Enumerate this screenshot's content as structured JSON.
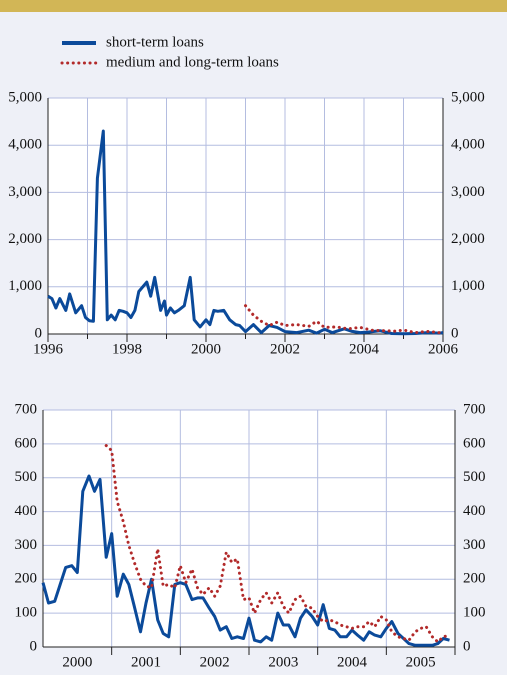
{
  "chart_data": [
    {
      "type": "line",
      "xlim": [
        1996,
        2006
      ],
      "xticks": [
        1996,
        1998,
        2000,
        2002,
        2004,
        2006
      ],
      "xticks_minor": [
        1997,
        1999,
        2001,
        2003,
        2005
      ],
      "ylim": [
        0,
        5000
      ],
      "yticks": [
        0,
        {
          "value": 1000,
          "label": "1,000"
        },
        {
          "value": 2000,
          "label": "2,000"
        },
        {
          "value": 3000,
          "label": "3,000"
        },
        {
          "value": 4000,
          "label": "4,000"
        },
        {
          "value": 5000,
          "label": "5,000"
        }
      ],
      "grid": true,
      "legend": "top-left",
      "series": [
        {
          "name": "short-term loans",
          "color": "#0b4a9a",
          "style": "solid",
          "x": [
            1996.0,
            1996.1,
            1996.2,
            1996.3,
            1996.45,
            1996.55,
            1996.7,
            1996.85,
            1996.95,
            1997.05,
            1997.15,
            1997.25,
            1997.4,
            1997.5,
            1997.6,
            1997.7,
            1997.8,
            1997.9,
            1998.0,
            1998.1,
            1998.2,
            1998.3,
            1998.5,
            1998.6,
            1998.7,
            1998.85,
            1998.95,
            1999.0,
            1999.1,
            1999.2,
            1999.3,
            1999.45,
            1999.6,
            1999.7,
            1999.85,
            1999.95,
            2000.0,
            2000.1,
            2000.2,
            2000.3,
            2000.45,
            2000.6,
            2000.75,
            2000.85,
            2001.0,
            2001.2,
            2001.4,
            2001.6,
            2001.8,
            2002.0,
            2002.3,
            2002.6,
            2002.8,
            2003.0,
            2003.2,
            2003.5,
            2003.7,
            2003.9,
            2004.1,
            2004.4,
            2004.7,
            2005.0,
            2005.3,
            2005.6,
            2005.9,
            2006.0
          ],
          "values": [
            800,
            750,
            550,
            750,
            500,
            850,
            450,
            600,
            350,
            280,
            270,
            3300,
            4300,
            300,
            400,
            300,
            500,
            480,
            450,
            350,
            500,
            900,
            1100,
            800,
            1200,
            500,
            700,
            400,
            550,
            450,
            500,
            600,
            1200,
            300,
            150,
            250,
            300,
            200,
            500,
            480,
            500,
            300,
            200,
            180,
            50,
            200,
            30,
            180,
            140,
            50,
            30,
            80,
            20,
            100,
            30,
            110,
            55,
            30,
            40,
            70,
            10,
            5,
            10,
            30,
            20,
            30
          ]
        },
        {
          "name": "medium and long-term loans",
          "color": "#b22a2a",
          "style": "dotted",
          "x": [
            2001.0,
            2001.2,
            2001.4,
            2001.6,
            2001.8,
            2002.0,
            2002.3,
            2002.6,
            2002.8,
            2003.0,
            2003.3,
            2003.6,
            2003.9,
            2004.2,
            2004.5,
            2004.8,
            2005.0,
            2005.3,
            2005.6,
            2005.9
          ],
          "values": [
            600,
            400,
            270,
            180,
            250,
            180,
            200,
            160,
            270,
            140,
            150,
            110,
            140,
            80,
            70,
            60,
            85,
            30,
            55,
            30
          ]
        }
      ]
    },
    {
      "type": "line",
      "xlim": [
        2000,
        2006
      ],
      "xticks": [
        {
          "value": 2000.5,
          "label": "2000"
        },
        {
          "value": 2001.5,
          "label": "2001"
        },
        {
          "value": 2002.5,
          "label": "2002"
        },
        {
          "value": 2003.5,
          "label": "2003"
        },
        {
          "value": 2004.5,
          "label": "2004"
        },
        {
          "value": 2005.5,
          "label": "2005"
        }
      ],
      "ylim": [
        0,
        700
      ],
      "yticks": [
        0,
        100,
        200,
        300,
        400,
        500,
        600,
        700
      ],
      "grid": true,
      "x": [
        2000.0,
        2000.08,
        2000.17,
        2000.25,
        2000.33,
        2000.42,
        2000.5,
        2000.58,
        2000.67,
        2000.75,
        2000.83,
        2000.92,
        2001.0,
        2001.08,
        2001.17,
        2001.25,
        2001.33,
        2001.42,
        2001.5,
        2001.58,
        2001.67,
        2001.75,
        2001.83,
        2001.92,
        2002.0,
        2002.08,
        2002.17,
        2002.25,
        2002.33,
        2002.42,
        2002.5,
        2002.58,
        2002.67,
        2002.75,
        2002.83,
        2002.92,
        2003.0,
        2003.08,
        2003.17,
        2003.25,
        2003.33,
        2003.42,
        2003.5,
        2003.58,
        2003.67,
        2003.75,
        2003.83,
        2003.92,
        2004.0,
        2004.08,
        2004.17,
        2004.25,
        2004.33,
        2004.42,
        2004.5,
        2004.58,
        2004.67,
        2004.75,
        2004.83,
        2004.92,
        2005.0,
        2005.08,
        2005.17,
        2005.25,
        2005.33,
        2005.42,
        2005.5,
        2005.58,
        2005.67,
        2005.75,
        2005.83,
        2005.92
      ],
      "series": [
        {
          "color": "#0b4a9a",
          "style": "solid",
          "values": [
            190,
            130,
            135,
            185,
            235,
            240,
            220,
            460,
            505,
            460,
            495,
            265,
            335,
            150,
            215,
            185,
            120,
            45,
            130,
            200,
            80,
            40,
            30,
            185,
            190,
            185,
            140,
            145,
            145,
            115,
            90,
            50,
            60,
            25,
            30,
            25,
            85,
            20,
            15,
            30,
            20,
            100,
            65,
            65,
            30,
            85,
            110,
            90,
            65,
            125,
            55,
            50,
            30,
            30,
            50,
            35,
            20,
            45,
            35,
            30,
            55,
            75,
            40,
            25,
            10,
            5,
            5,
            5,
            5,
            10,
            25,
            20
          ]
        },
        {
          "color": "#b22a2a",
          "style": "dotted",
          "values": [
            null,
            null,
            null,
            null,
            null,
            null,
            null,
            null,
            null,
            null,
            null,
            595,
            580,
            430,
            370,
            300,
            250,
            200,
            180,
            175,
            290,
            180,
            185,
            175,
            240,
            190,
            230,
            175,
            155,
            175,
            150,
            180,
            280,
            250,
            260,
            140,
            145,
            100,
            140,
            160,
            130,
            160,
            120,
            100,
            140,
            150,
            120,
            115,
            90,
            75,
            80,
            75,
            65,
            60,
            55,
            60,
            60,
            75,
            60,
            90,
            80,
            45,
            30,
            25,
            20,
            45,
            55,
            60,
            30,
            15,
            30,
            35
          ]
        }
      ]
    }
  ]
}
